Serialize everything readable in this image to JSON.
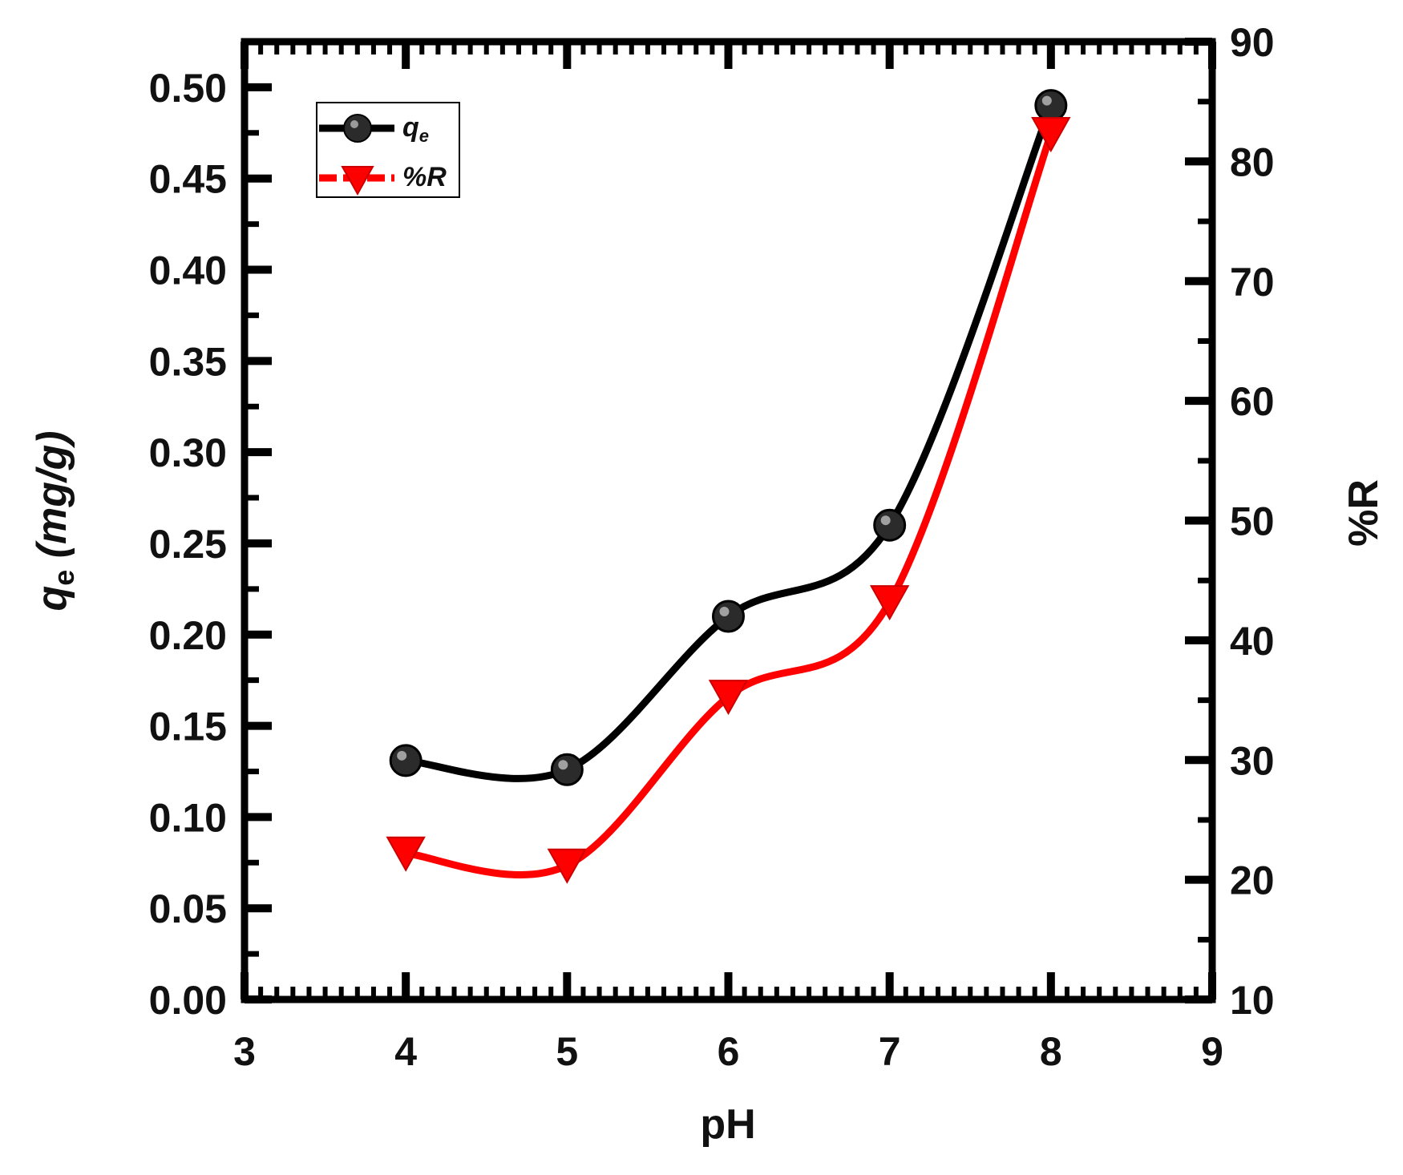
{
  "chart_data": {
    "type": "line",
    "x": [
      4,
      5,
      6,
      7,
      8
    ],
    "xlabel": "pH",
    "xlim": [
      3,
      9
    ],
    "xticks": [
      3,
      4,
      5,
      6,
      7,
      8,
      9
    ],
    "left_axis": {
      "label_main": "q",
      "label_sub": "e",
      "label_unit": " (mg/g)",
      "ylim": [
        0,
        0.525
      ],
      "ticks": [
        "0.00",
        "0.05",
        "0.10",
        "0.15",
        "0.20",
        "0.25",
        "0.30",
        "0.35",
        "0.40",
        "0.45",
        "0.50"
      ]
    },
    "right_axis": {
      "label": "%R",
      "ylim": [
        10,
        90
      ],
      "ticks": [
        "10",
        "20",
        "30",
        "40",
        "50",
        "60",
        "70",
        "80",
        "90"
      ]
    },
    "series": [
      {
        "name": "qe",
        "legend_main": "q",
        "legend_sub": "e",
        "axis": "left",
        "values": [
          0.131,
          0.126,
          0.21,
          0.26,
          0.49
        ],
        "color": "#000000",
        "marker": "circle",
        "linestyle": "solid"
      },
      {
        "name": "%R",
        "legend_label": "%R",
        "axis": "right",
        "values": [
          22.2,
          21.2,
          35.3,
          43.2,
          82.3
        ],
        "color": "#ff0000",
        "marker": "triangle-down",
        "linestyle": "solid"
      }
    ],
    "legend_position": "top-left",
    "grid": false
  }
}
